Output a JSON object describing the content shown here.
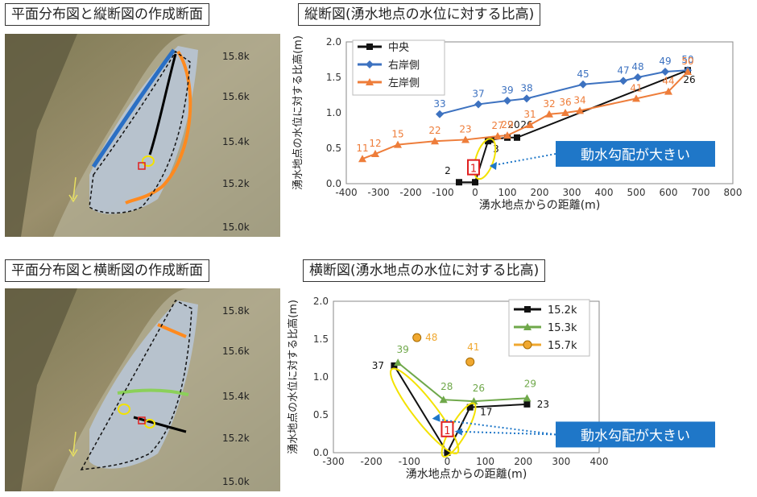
{
  "top_panel": {
    "map_title": "平面分布図と縦断図の作成断面",
    "chart_title": "縦断図(湧水地点の水位に対する比高)",
    "map_labels": [
      "15.8k",
      "15.6k",
      "15.4k",
      "15.2k",
      "15.0k"
    ],
    "callout": "動水勾配が大きい",
    "marker": "1"
  },
  "bottom_panel": {
    "map_title": "平面分布図と横断図の作成断面",
    "chart_title": "横断図(湧水地点の水位に対する比高)",
    "map_labels": [
      "15.8k",
      "15.6k",
      "15.4k",
      "15.2k",
      "15.0k"
    ],
    "callout": "動水勾配が大きい",
    "marker": "1"
  },
  "colors": {
    "black": "#111111",
    "blue": "#3d72c0",
    "orange": "#ee7d3a",
    "green": "#6fa84a",
    "gold": "#f0a830",
    "yellow": "#f3e200",
    "callout": "#1f77c8",
    "marker": "#e02020"
  },
  "chart_data": [
    {
      "type": "line",
      "title": "縦断図(湧水地点の水位に対する比高)",
      "xlabel": "湧水地点からの距離(m)",
      "ylabel": "湧水地点の水位に対する比高(m)",
      "xlim": [
        -400,
        800
      ],
      "ylim": [
        0,
        2
      ],
      "xticks": [
        -400,
        -300,
        -200,
        -100,
        0,
        100,
        200,
        300,
        400,
        500,
        600,
        700,
        800
      ],
      "yticks": [
        0.0,
        0.5,
        1.0,
        1.5,
        2.0
      ],
      "legend": "top-left",
      "series": [
        {
          "name": "中央",
          "color": "#111111",
          "marker": "square",
          "points": [
            [
              -50,
              0.02,
              "2"
            ],
            [
              0,
              0.02,
              ""
            ],
            [
              40,
              0.6,
              "3"
            ],
            [
              50,
              0.62,
              ""
            ],
            [
              100,
              0.65,
              "20"
            ],
            [
              130,
              0.65,
              "26"
            ],
            [
              660,
              1.6,
              "26"
            ]
          ]
        },
        {
          "name": "右岸側",
          "color": "#3d72c0",
          "marker": "diamond",
          "points": [
            [
              -110,
              0.98,
              "33"
            ],
            [
              10,
              1.12,
              "37"
            ],
            [
              100,
              1.17,
              "39"
            ],
            [
              160,
              1.2,
              "38"
            ],
            [
              335,
              1.4,
              "45"
            ],
            [
              460,
              1.45,
              "47"
            ],
            [
              505,
              1.5,
              "48"
            ],
            [
              590,
              1.58,
              "49"
            ],
            [
              660,
              1.6,
              "50"
            ]
          ]
        },
        {
          "name": "左岸側",
          "color": "#ee7d3a",
          "marker": "triangle",
          "points": [
            [
              -350,
              0.35,
              "11"
            ],
            [
              -310,
              0.42,
              "12"
            ],
            [
              -240,
              0.55,
              "15"
            ],
            [
              -125,
              0.6,
              "22"
            ],
            [
              -30,
              0.62,
              "23"
            ],
            [
              70,
              0.67,
              "27"
            ],
            [
              100,
              0.68,
              "29"
            ],
            [
              170,
              0.83,
              "31"
            ],
            [
              230,
              0.98,
              "32"
            ],
            [
              280,
              1.0,
              "36"
            ],
            [
              325,
              1.03,
              "34"
            ],
            [
              500,
              1.2,
              "41"
            ],
            [
              600,
              1.3,
              "44"
            ],
            [
              660,
              1.58,
              "50"
            ]
          ]
        }
      ]
    },
    {
      "type": "line",
      "title": "横断図(湧水地点の水位に対する比高)",
      "xlabel": "湧水地点からの距離(m)",
      "ylabel": "湧水地点の水位に対する比高(m)",
      "xlim": [
        -300,
        400
      ],
      "ylim": [
        0,
        2
      ],
      "xticks": [
        -300,
        -200,
        -100,
        0,
        100,
        200,
        300,
        400
      ],
      "yticks": [
        0.0,
        0.5,
        1.0,
        1.5,
        2.0
      ],
      "legend": "top-right",
      "series": [
        {
          "name": "15.2k",
          "color": "#111111",
          "marker": "square",
          "line": true,
          "points": [
            [
              -140,
              1.15,
              "37"
            ],
            [
              0,
              0.0,
              ""
            ],
            [
              60,
              0.6,
              "17"
            ],
            [
              210,
              0.64,
              "23"
            ]
          ]
        },
        {
          "name": "15.3k",
          "color": "#6fa84a",
          "marker": "triangle",
          "line": true,
          "points": [
            [
              -130,
              1.19,
              "39"
            ],
            [
              -10,
              0.7,
              "28"
            ],
            [
              70,
              0.68,
              "26"
            ],
            [
              210,
              0.72,
              "29"
            ]
          ]
        },
        {
          "name": "15.7k",
          "color": "#f0a830",
          "marker": "circle",
          "line": false,
          "points": [
            [
              -80,
              1.52,
              "48"
            ],
            [
              60,
              1.2,
              "41"
            ]
          ]
        }
      ]
    }
  ]
}
